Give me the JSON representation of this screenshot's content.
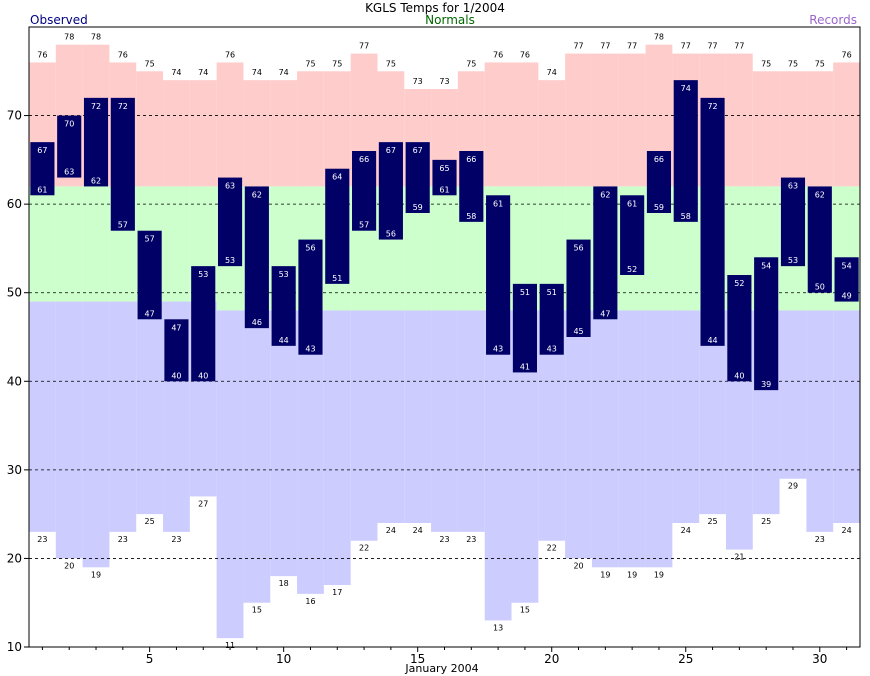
{
  "chart_data": {
    "type": "bar",
    "title": "KGLS Temps for 1/2004",
    "legend": {
      "observed": "Observed",
      "normals": "Normals",
      "records": "Records"
    },
    "xlabel": "January 2004",
    "ylim": [
      10,
      80
    ],
    "xlim": [
      0.5,
      31.5
    ],
    "yticks": [
      10,
      20,
      30,
      40,
      50,
      60,
      70
    ],
    "xticks": [
      5,
      10,
      15,
      20,
      25,
      30
    ],
    "grid_y": [
      20,
      30,
      40,
      50,
      60,
      70
    ],
    "days": [
      1,
      2,
      3,
      4,
      5,
      6,
      7,
      8,
      9,
      10,
      11,
      12,
      13,
      14,
      15,
      16,
      17,
      18,
      19,
      20,
      21,
      22,
      23,
      24,
      25,
      26,
      27,
      28,
      29,
      30,
      31
    ],
    "record_high": [
      76,
      78,
      78,
      76,
      75,
      74,
      74,
      76,
      74,
      74,
      75,
      75,
      77,
      75,
      73,
      73,
      75,
      76,
      76,
      74,
      77,
      77,
      77,
      78,
      77,
      77,
      77,
      75,
      75,
      75,
      76
    ],
    "record_low": [
      23,
      20,
      19,
      23,
      25,
      23,
      27,
      11,
      15,
      18,
      16,
      17,
      22,
      24,
      24,
      23,
      23,
      13,
      15,
      22,
      20,
      19,
      19,
      19,
      24,
      25,
      21,
      25,
      29,
      23,
      24
    ],
    "normal_high": [
      62,
      62,
      62,
      62,
      62,
      62,
      62,
      62,
      62,
      62,
      62,
      62,
      62,
      62,
      62,
      62,
      62,
      62,
      62,
      62,
      62,
      62,
      62,
      62,
      62,
      62,
      62,
      62,
      62,
      62,
      62
    ],
    "normal_low": [
      49,
      49,
      49,
      49,
      49,
      49,
      49,
      48,
      48,
      48,
      48,
      48,
      48,
      48,
      48,
      48,
      48,
      48,
      48,
      48,
      48,
      48,
      48,
      48,
      48,
      48,
      48,
      48,
      48,
      48,
      48
    ],
    "observed_high": [
      67,
      70,
      72,
      72,
      57,
      47,
      53,
      63,
      62,
      53,
      56,
      64,
      66,
      67,
      67,
      65,
      66,
      61,
      51,
      51,
      56,
      62,
      61,
      66,
      74,
      72,
      52,
      54,
      63,
      62,
      54
    ],
    "observed_low": [
      61,
      63,
      62,
      57,
      47,
      40,
      40,
      53,
      46,
      44,
      43,
      51,
      57,
      56,
      59,
      61,
      58,
      43,
      41,
      43,
      45,
      47,
      52,
      59,
      58,
      44,
      40,
      39,
      53,
      50,
      49
    ],
    "colors": {
      "records": "#ffcccc",
      "normal_band": "#ccffcc",
      "lows_band": "#ccccff",
      "observed": "#000066",
      "observed_title": "#000080",
      "normals_title": "#006600",
      "records_title": "#9966cc"
    }
  }
}
